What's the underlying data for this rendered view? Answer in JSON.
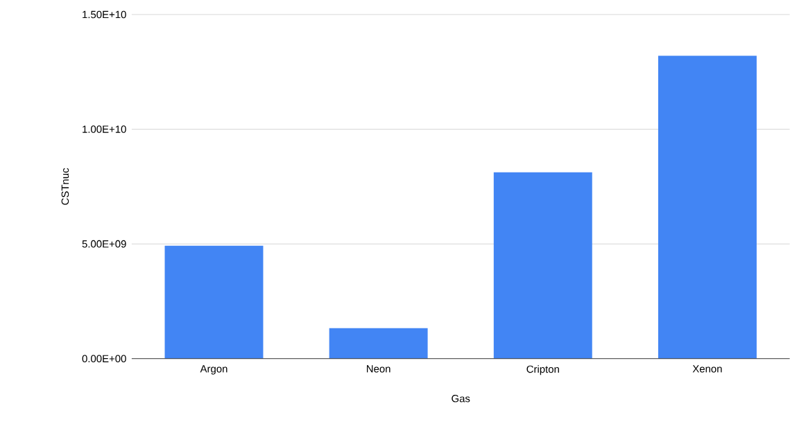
{
  "chart_data": {
    "type": "bar",
    "xlabel": "Gas",
    "ylabel": "CSTnuc",
    "categories": [
      "Argon",
      "Neon",
      "Cripton",
      "Xenon"
    ],
    "values": [
      4920000000.0,
      1330000000.0,
      8120000000.0,
      13200000000.0
    ],
    "color": "#4285f4",
    "ylim": [
      0,
      15000000000.0
    ],
    "yticks": [
      {
        "value": 0,
        "label": "0.00E+00"
      },
      {
        "value": 5000000000.0,
        "label": "5.00E+09"
      },
      {
        "value": 10000000000.0,
        "label": "1.00E+10"
      },
      {
        "value": 15000000000.0,
        "label": "1.50E+10"
      }
    ],
    "grid": "y"
  }
}
